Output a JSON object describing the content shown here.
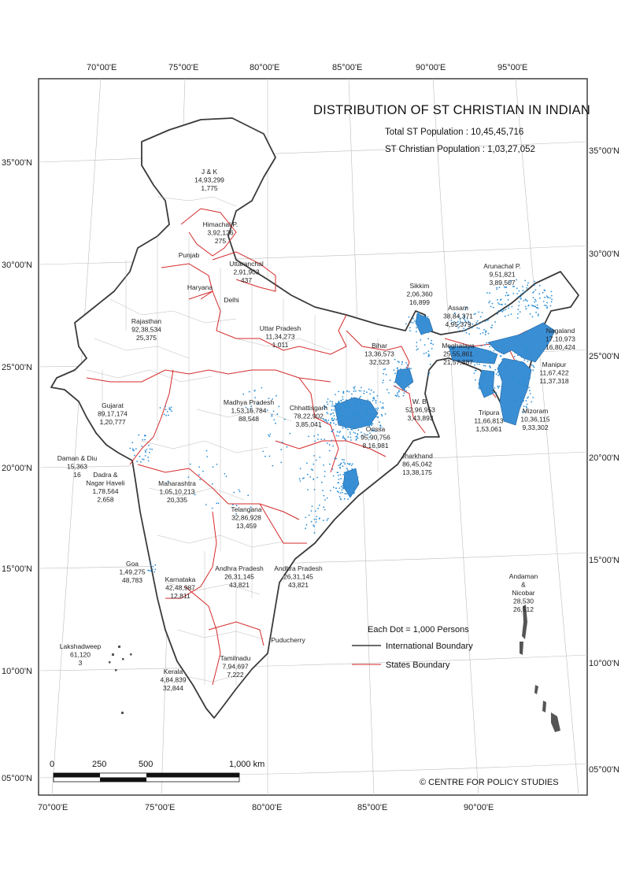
{
  "title": "DISTRIBUTION OF ST CHRISTIAN IN INDIAN",
  "total_label": "Total ST Population : 10,45,45,716",
  "christian_label": "ST Christian Population : 1,03,27,052",
  "legend": {
    "dot": "Each Dot = 1,000 Persons",
    "intl": "International Boundary",
    "states": "States Boundary"
  },
  "credit": "© CENTRE FOR POLICY STUDIES",
  "scale": {
    "t0": "0",
    "t1": "250",
    "t2": "500",
    "t3": "1,000 km"
  },
  "top_lon": [
    "70°00'E",
    "75°00'E",
    "80°00'E",
    "85°00'E",
    "90°00'E",
    "95°00'E"
  ],
  "bottom_lon": [
    "70°00'E",
    "75°00'E",
    "80°00'E",
    "85°00'E",
    "90°00'E"
  ],
  "left_lat": [
    "35°00'N",
    "30°00'N",
    "25°00'N",
    "20°00'N",
    "15°00'N",
    "10°00'N",
    "05°00'N"
  ],
  "right_lat": [
    "35°00'N",
    "30°00'N",
    "25°00'N",
    "20°00'N",
    "15°00'N",
    "10°00'N",
    "05°00'N"
  ],
  "regions": [
    {
      "name": "J & K",
      "pop": "14,93,299",
      "chr": "1,775"
    },
    {
      "name": "Himachal P.",
      "pop": "3,92,126",
      "chr": "275"
    },
    {
      "name": "Punjab",
      "pop": "",
      "chr": ""
    },
    {
      "name": "Uttaranchal",
      "pop": "2,91,903",
      "chr": "437"
    },
    {
      "name": "Haryana",
      "pop": "",
      "chr": ""
    },
    {
      "name": "Delhi",
      "pop": "",
      "chr": ""
    },
    {
      "name": "Rajasthan",
      "pop": "92,38,534",
      "chr": "25,375"
    },
    {
      "name": "Uttar Pradesh",
      "pop": "11,34,273",
      "chr": "1,011"
    },
    {
      "name": "Bihar",
      "pop": "13,36,573",
      "chr": "32,523"
    },
    {
      "name": "Sikkim",
      "pop": "2,06,360",
      "chr": "16,899"
    },
    {
      "name": "Arunachal P.",
      "pop": "9,51,821",
      "chr": "3,89,507"
    },
    {
      "name": "Assam",
      "pop": "38,84,371",
      "chr": "4,95,379"
    },
    {
      "name": "Nagaland",
      "pop": "17,10,973",
      "chr": "16,80,424"
    },
    {
      "name": "Meghalaya",
      "pop": "25,55,861",
      "chr": "21,57,887"
    },
    {
      "name": "Manipur",
      "pop": "11,67,422",
      "chr": "11,37,318"
    },
    {
      "name": "Gujarat",
      "pop": "89,17,174",
      "chr": "1,20,777"
    },
    {
      "name": "Madhya Pradesh",
      "pop": "1,53,16,784",
      "chr": "88,548"
    },
    {
      "name": "W. B.",
      "pop": "52,96,953",
      "chr": "3,43,893"
    },
    {
      "name": "Chhattisgarh",
      "pop": "78,22,902",
      "chr": "3,85,041"
    },
    {
      "name": "Tripura",
      "pop": "11,66,813",
      "chr": "1,53,061"
    },
    {
      "name": "Mizoram",
      "pop": "10,36,115",
      "chr": "9,33,302"
    },
    {
      "name": "Orissa",
      "pop": "95,90,756",
      "chr": "8,16,981"
    },
    {
      "name": "Jharkhand",
      "pop": "86,45,042",
      "chr": "13,38,175"
    },
    {
      "name": "Daman & Diu",
      "pop": "15,363",
      "chr": "16"
    },
    {
      "name": "Dadra & Nagar Haveli",
      "pop": "1,78,564",
      "chr": "2,658"
    },
    {
      "name": "Maharashtra",
      "pop": "1,05,10,213",
      "chr": "20,335"
    },
    {
      "name": "Telangana",
      "pop": "32,86,928",
      "chr": "13,459"
    },
    {
      "name": "Goa",
      "pop": "1,49,275",
      "chr": "48,783"
    },
    {
      "name": "Karnataka",
      "pop": "42,48,987",
      "chr": "12,811"
    },
    {
      "name": "Andhra Pradesh",
      "pop": "26,31,145",
      "chr": "43,821"
    },
    {
      "name": "Andhra Pradesh",
      "pop": "26,31,145",
      "chr": "43,821"
    },
    {
      "name": "Andaman & Nicobar",
      "pop": "28,530",
      "chr": "26,512"
    },
    {
      "name": "Lakshadweep",
      "pop": "61,120",
      "chr": "3"
    },
    {
      "name": "Puducherry",
      "pop": "",
      "chr": ""
    },
    {
      "name": "Tamilnadu",
      "pop": "7,94,697",
      "chr": "7,222"
    },
    {
      "name": "Kerala",
      "pop": "4,84,839",
      "chr": "32,844"
    }
  ],
  "colors": {
    "dot": "#2b8fd6",
    "state_boundary": "#d42a2a",
    "intl_boundary": "#3a3a3a",
    "dense_fill": "#3a8ed4"
  }
}
